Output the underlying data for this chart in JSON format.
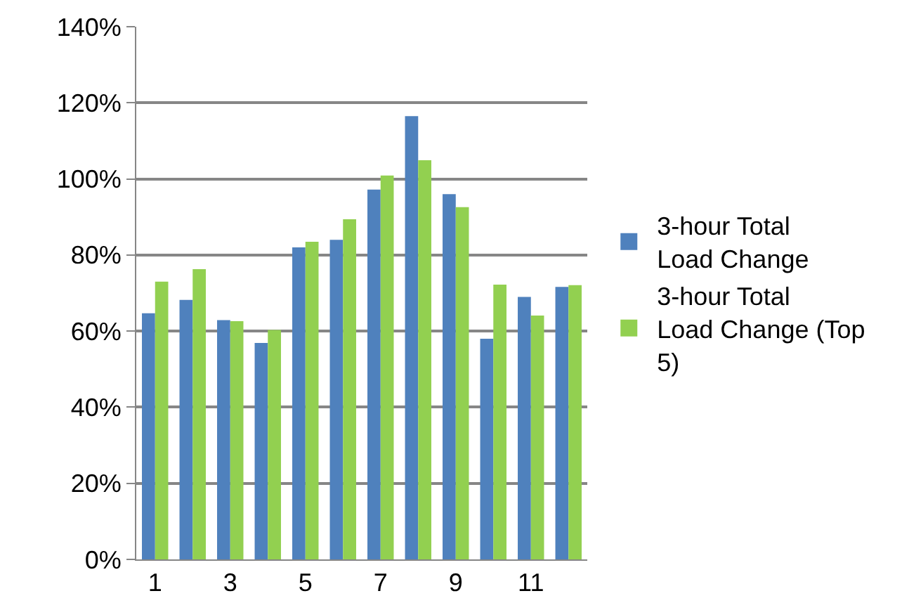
{
  "chart_data": {
    "type": "bar",
    "categories": [
      "1",
      null,
      "3",
      null,
      "5",
      null,
      "7",
      null,
      "9",
      null,
      "11",
      null
    ],
    "series": [
      {
        "name": "3-hour Total Load Change",
        "color": "#4f81bd",
        "values": [
          64.7,
          68.2,
          62.9,
          56.9,
          82.0,
          84.0,
          97.2,
          116.5,
          96.0,
          58.0,
          69.0,
          71.6
        ]
      },
      {
        "name": "3-hour Total Load Change (Top 5)",
        "color": "#92d050",
        "values": [
          73.0,
          76.3,
          62.6,
          60.3,
          83.5,
          89.4,
          100.9,
          104.9,
          92.6,
          72.2,
          64.1,
          72.1
        ]
      }
    ],
    "ylim": [
      0,
      140
    ],
    "yticks": [
      {
        "value": 0,
        "label": "0%"
      },
      {
        "value": 20,
        "label": "20%"
      },
      {
        "value": 40,
        "label": "40%"
      },
      {
        "value": 60,
        "label": "60%"
      },
      {
        "value": 80,
        "label": "80%"
      },
      {
        "value": 100,
        "label": "100%"
      },
      {
        "value": 120,
        "label": "120%"
      },
      {
        "value": 140,
        "label": "140%"
      }
    ],
    "grid": "y",
    "legend": "right"
  }
}
